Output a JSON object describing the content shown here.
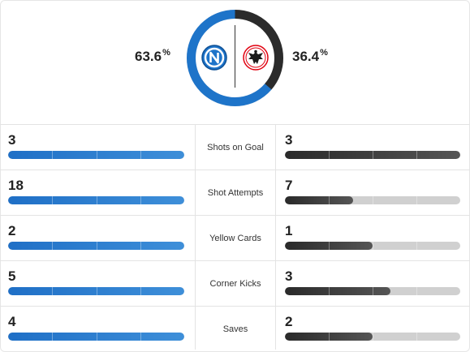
{
  "colors": {
    "home": "#1e74c9",
    "away": "#2b2b2b",
    "track": "#d0d0d0"
  },
  "possession": {
    "home": {
      "value": "63.6",
      "unit": "%",
      "fraction": 0.636,
      "logo": "napoli-crest-icon"
    },
    "away": {
      "value": "36.4",
      "unit": "%",
      "fraction": 0.364,
      "logo": "frankfurt-eagle-crest-icon"
    }
  },
  "stats": [
    {
      "label": "Shots on Goal",
      "home": "3",
      "away": "3",
      "home_fraction": 1.0,
      "away_fraction": 1.0
    },
    {
      "label": "Shot Attempts",
      "home": "18",
      "away": "7",
      "home_fraction": 1.0,
      "away_fraction": 0.39
    },
    {
      "label": "Yellow Cards",
      "home": "2",
      "away": "1",
      "home_fraction": 1.0,
      "away_fraction": 0.5
    },
    {
      "label": "Corner Kicks",
      "home": "5",
      "away": "3",
      "home_fraction": 1.0,
      "away_fraction": 0.6
    },
    {
      "label": "Saves",
      "home": "4",
      "away": "2",
      "home_fraction": 1.0,
      "away_fraction": 0.5
    }
  ]
}
